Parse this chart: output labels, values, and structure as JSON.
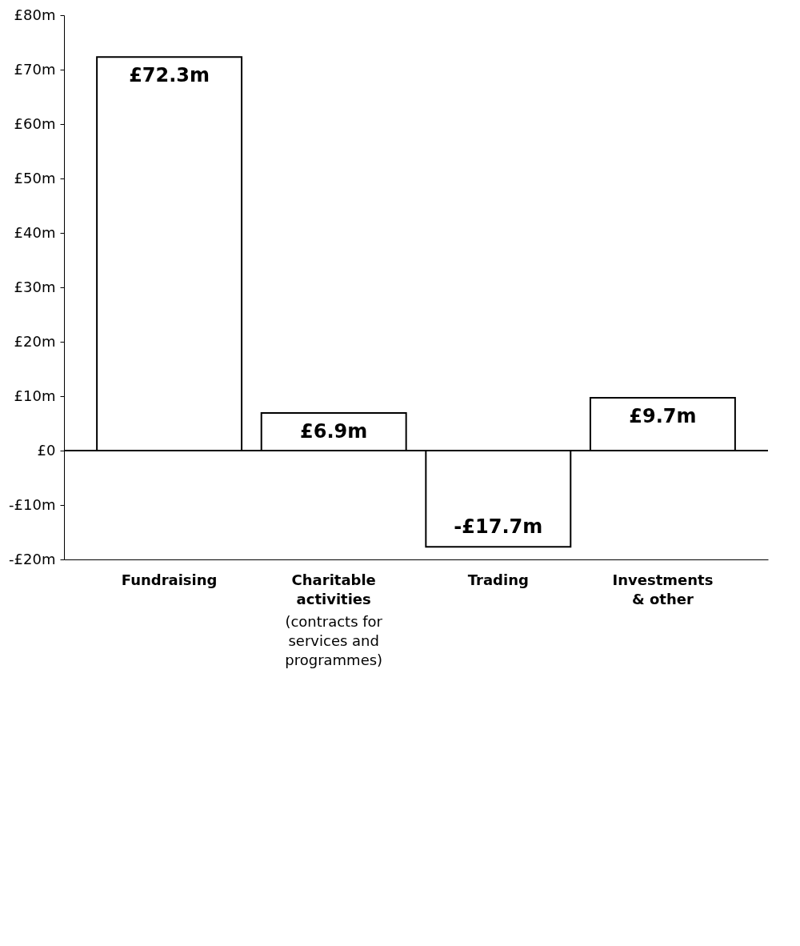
{
  "chart_data": {
    "type": "bar",
    "categories": [
      "Fundraising",
      "Charitable activities (contracts for services and programmes)",
      "Trading",
      "Investments & other"
    ],
    "values": [
      72.3,
      6.9,
      -17.7,
      9.7
    ],
    "color": "#ffffff",
    "value_labels": [
      "£72.3m",
      "£6.9m",
      "-£17.7m",
      "£9.7m"
    ],
    "ylim": [
      -20,
      80
    ],
    "yticks": [
      {
        "value": -20,
        "label": "-£20m"
      },
      {
        "value": -10,
        "label": "-£10m"
      },
      {
        "value": 0,
        "label": "£0"
      },
      {
        "value": 10,
        "label": "£10m"
      },
      {
        "value": 20,
        "label": "£20m"
      },
      {
        "value": 30,
        "label": "£30m"
      },
      {
        "value": 40,
        "label": "£40m"
      },
      {
        "value": 50,
        "label": "£50m"
      },
      {
        "value": 60,
        "label": "£60m"
      },
      {
        "value": 70,
        "label": "£70m"
      },
      {
        "value": 80,
        "label": "£80m"
      }
    ],
    "ref_lines": [
      {
        "axis": "y",
        "value": 0,
        "color": "#000000"
      }
    ],
    "grid": false
  }
}
